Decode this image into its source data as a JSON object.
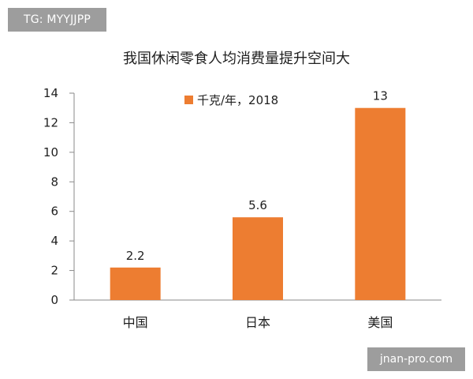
{
  "watermark_top": "TG: MYYJJPP",
  "watermark_bottom": "jnan-pro.com",
  "colors": {
    "bar": "#ed7d31",
    "axis": "#8a8a8a",
    "text": "#1f1f1f"
  },
  "chart_data": {
    "type": "bar",
    "title": "我国休闲零食人均消费量提升空间大",
    "categories": [
      "中国",
      "日本",
      "美国"
    ],
    "series": [
      {
        "name": "千克/年，2018",
        "values": [
          2.2,
          5.6,
          13
        ]
      }
    ],
    "data_labels": [
      "2.2",
      "5.6",
      "13"
    ],
    "y_ticks": [
      0,
      2,
      4,
      6,
      8,
      10,
      12,
      14
    ],
    "y_tick_labels": [
      "0",
      "2",
      "4",
      "6",
      "8",
      "10",
      "12",
      "14"
    ],
    "ylim": [
      0,
      14
    ],
    "grid": false,
    "legend_position": "top-center"
  }
}
